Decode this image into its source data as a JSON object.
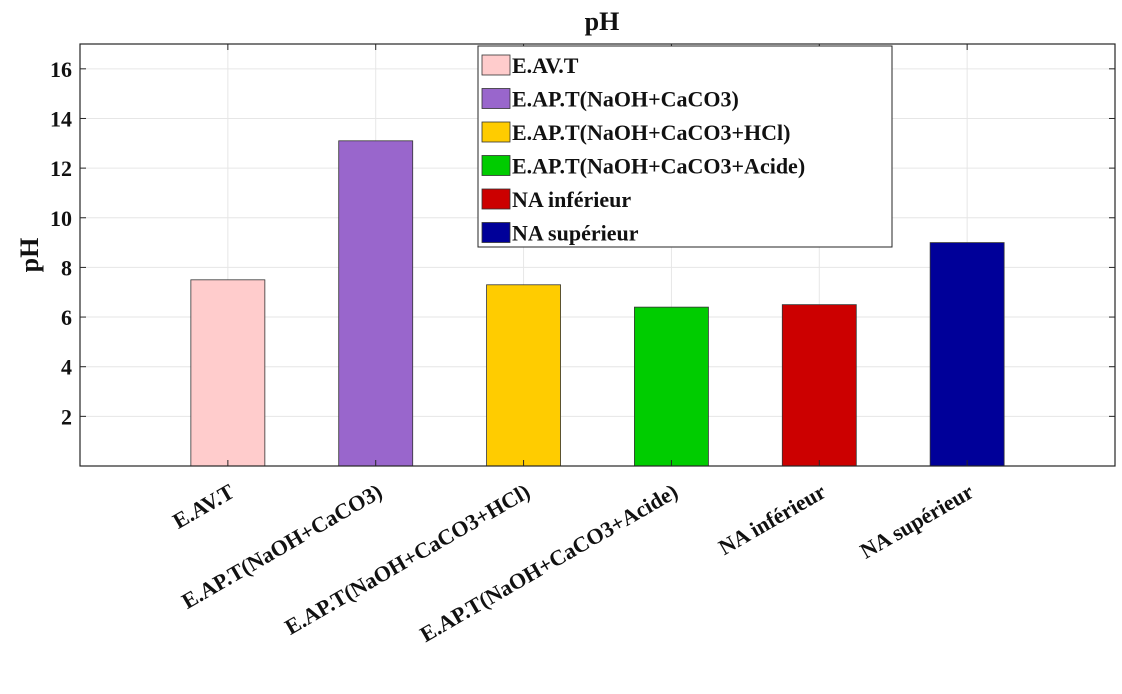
{
  "chart_data": {
    "type": "bar",
    "title": "pH",
    "xlabel": "",
    "ylabel": "pH",
    "ylim": [
      0,
      17
    ],
    "yticks": [
      2,
      4,
      6,
      8,
      10,
      12,
      14,
      16
    ],
    "grid": true,
    "legend_position": "top-center",
    "categories": [
      "E.AV.T",
      "E.AP.T(NaOH+CaCO3)",
      "E.AP.T(NaOH+CaCO3+HCl)",
      "E.AP.T(NaOH+CaCO3+Acide)",
      "NA inférieur",
      "NA supérieur"
    ],
    "values": [
      7.5,
      13.1,
      7.3,
      6.4,
      6.5,
      9.0
    ],
    "colors": [
      "#ffcccc",
      "#9966cc",
      "#ffcc00",
      "#00cc00",
      "#cc0000",
      "#000099"
    ],
    "legend": [
      "E.AV.T",
      "E.AP.T(NaOH+CaCO3)",
      "E.AP.T(NaOH+CaCO3+HCl)",
      "E.AP.T(NaOH+CaCO3+Acide)",
      "NA inférieur",
      "NA supérieur"
    ]
  }
}
